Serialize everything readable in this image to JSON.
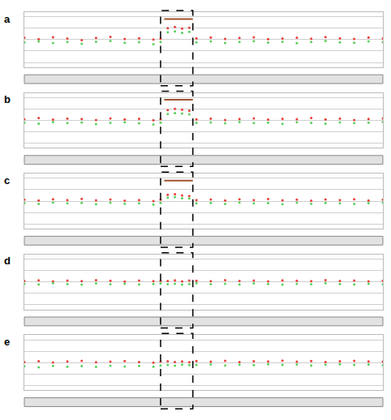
{
  "chart_data": [
    {
      "type": "scatter",
      "title": "a",
      "xlim": [
        0,
        100
      ],
      "ylim": [
        -1.2,
        1.2
      ],
      "yticks": [
        -1,
        -0.5,
        0,
        0.5,
        1
      ],
      "grid": true,
      "tick_labels": false,
      "marker": "circle",
      "x": [
        0,
        4,
        8,
        12,
        16,
        20,
        24,
        28,
        32,
        36,
        38,
        40,
        42,
        44,
        46,
        48,
        52,
        56,
        60,
        64,
        68,
        72,
        76,
        80,
        84,
        88,
        92,
        96,
        100
      ],
      "highlight_x": [
        38,
        47
      ],
      "gain_segment": {
        "x": [
          39,
          47
        ],
        "y": 0.9,
        "color": "#a0522d"
      },
      "series": [
        {
          "color": "#e8403a",
          "values": [
            0.08,
            0.02,
            0.1,
            0.05,
            -0.02,
            0.07,
            0.12,
            0.03,
            0.06,
            0.0,
            0.04,
            0.5,
            0.55,
            0.48,
            0.52,
            0.06,
            0.09,
            0.03,
            0.07,
            0.1,
            0.02,
            0.05,
            0.08,
            0.04,
            0.11,
            0.06,
            0.03,
            0.09,
            0.05
          ]
        },
        {
          "color": "#5ccf5c",
          "values": [
            -0.12,
            -0.08,
            -0.15,
            -0.1,
            -0.18,
            -0.09,
            -0.06,
            -0.14,
            -0.11,
            -0.2,
            -0.1,
            0.32,
            0.36,
            0.3,
            0.34,
            -0.12,
            -0.08,
            -0.15,
            -0.1,
            -0.07,
            -0.13,
            -0.09,
            -0.16,
            -0.1,
            -0.06,
            -0.12,
            -0.14,
            -0.08,
            -0.11
          ]
        }
      ]
    },
    {
      "type": "scatter",
      "title": "b",
      "xlim": [
        0,
        100
      ],
      "ylim": [
        -1.2,
        1.2
      ],
      "yticks": [
        -1,
        -0.5,
        0,
        0.5,
        1
      ],
      "grid": true,
      "tick_labels": false,
      "marker": "circle",
      "x": [
        0,
        4,
        8,
        12,
        16,
        20,
        24,
        28,
        32,
        36,
        38,
        40,
        42,
        44,
        46,
        48,
        52,
        56,
        60,
        64,
        68,
        72,
        76,
        80,
        84,
        88,
        92,
        96,
        100
      ],
      "highlight_x": [
        38,
        47
      ],
      "gain_segment": {
        "x": [
          39,
          47
        ],
        "y": 0.9,
        "color": "#a0522d"
      },
      "series": [
        {
          "color": "#e8403a",
          "values": [
            0.05,
            0.1,
            0.03,
            0.08,
            0.06,
            0.02,
            0.09,
            0.04,
            0.07,
            0.01,
            0.05,
            0.45,
            0.5,
            0.47,
            0.42,
            0.04,
            0.08,
            0.02,
            0.06,
            0.09,
            0.03,
            0.07,
            0.05,
            0.1,
            0.04,
            0.08,
            0.02,
            0.06,
            0.09
          ]
        },
        {
          "color": "#5ccf5c",
          "values": [
            -0.1,
            -0.14,
            -0.07,
            -0.12,
            -0.09,
            -0.16,
            -0.11,
            -0.08,
            -0.13,
            -0.18,
            -0.1,
            0.28,
            0.32,
            0.3,
            0.26,
            -0.11,
            -0.09,
            -0.13,
            -0.07,
            -0.12,
            -0.1,
            -0.15,
            -0.08,
            -0.11,
            -0.14,
            -0.09,
            -0.12,
            -0.1,
            -0.07
          ]
        }
      ]
    },
    {
      "type": "scatter",
      "title": "c",
      "xlim": [
        0,
        100
      ],
      "ylim": [
        -1.2,
        1.2
      ],
      "yticks": [
        -1,
        -0.5,
        0,
        0.5,
        1
      ],
      "grid": true,
      "tick_labels": false,
      "marker": "circle",
      "x": [
        0,
        4,
        8,
        12,
        16,
        20,
        24,
        28,
        32,
        36,
        38,
        40,
        42,
        44,
        46,
        48,
        52,
        56,
        60,
        64,
        68,
        72,
        76,
        80,
        84,
        88,
        92,
        96,
        100
      ],
      "highlight_x": [
        38,
        47
      ],
      "gain_segment": {
        "x": [
          39,
          47
        ],
        "y": 0.9,
        "color": "#a0522d"
      },
      "series": [
        {
          "color": "#e8403a",
          "values": [
            0.06,
            0.03,
            0.08,
            0.05,
            0.1,
            0.04,
            0.07,
            0.02,
            0.05,
            0.0,
            0.06,
            0.28,
            0.3,
            0.25,
            0.22,
            0.05,
            0.07,
            0.03,
            0.08,
            0.05,
            0.09,
            0.04,
            0.06,
            0.02,
            0.07,
            0.05,
            0.08,
            0.03,
            0.06
          ]
        },
        {
          "color": "#5ccf5c",
          "values": [
            -0.09,
            -0.12,
            -0.06,
            -0.1,
            -0.08,
            -0.13,
            -0.07,
            -0.11,
            -0.1,
            -0.15,
            -0.08,
            0.15,
            0.18,
            0.13,
            0.12,
            -0.1,
            -0.08,
            -0.12,
            -0.06,
            -0.1,
            -0.09,
            -0.13,
            -0.07,
            -0.11,
            -0.08,
            -0.1,
            -0.12,
            -0.09,
            -0.07
          ]
        }
      ]
    },
    {
      "type": "scatter",
      "title": "d",
      "xlim": [
        0,
        100
      ],
      "ylim": [
        -1.2,
        1.2
      ],
      "yticks": [
        -1,
        -0.5,
        0,
        0.5,
        1
      ],
      "grid": true,
      "tick_labels": false,
      "marker": "circle",
      "x": [
        0,
        4,
        8,
        12,
        16,
        20,
        24,
        28,
        32,
        36,
        38,
        40,
        42,
        44,
        46,
        48,
        52,
        56,
        60,
        64,
        68,
        72,
        76,
        80,
        84,
        88,
        92,
        96,
        100
      ],
      "highlight_x": [
        38,
        47
      ],
      "series": [
        {
          "color": "#e8403a",
          "values": [
            0.04,
            0.07,
            0.02,
            0.06,
            0.03,
            0.08,
            0.05,
            0.01,
            0.06,
            0.03,
            0.05,
            0.04,
            0.07,
            0.02,
            0.06,
            0.05,
            0.03,
            0.08,
            0.04,
            0.06,
            0.02,
            0.07,
            0.05,
            0.03,
            0.08,
            0.04,
            0.06,
            0.02,
            0.05
          ]
        },
        {
          "color": "#5ccf5c",
          "values": [
            -0.08,
            -0.11,
            -0.06,
            -0.09,
            -0.12,
            -0.07,
            -0.1,
            -0.08,
            -0.11,
            -0.09,
            -0.07,
            -0.1,
            -0.08,
            -0.12,
            -0.09,
            -0.06,
            -0.1,
            -0.08,
            -0.11,
            -0.07,
            -0.09,
            -0.12,
            -0.08,
            -0.1,
            -0.06,
            -0.09,
            -0.11,
            -0.08,
            -0.1
          ]
        }
      ]
    },
    {
      "type": "scatter",
      "title": "e",
      "xlim": [
        0,
        100
      ],
      "ylim": [
        -1.2,
        1.2
      ],
      "yticks": [
        -1,
        -0.5,
        0,
        0.5,
        1
      ],
      "grid": true,
      "tick_labels": false,
      "marker": "circle",
      "x": [
        0,
        4,
        8,
        12,
        16,
        20,
        24,
        28,
        32,
        36,
        38,
        40,
        42,
        44,
        46,
        48,
        52,
        56,
        60,
        64,
        68,
        72,
        76,
        80,
        84,
        88,
        92,
        96,
        100
      ],
      "highlight_x": [
        38,
        47
      ],
      "series": [
        {
          "color": "#e8403a",
          "values": [
            0.03,
            0.06,
            0.01,
            0.05,
            0.08,
            0.02,
            0.04,
            0.07,
            0.03,
            0.0,
            0.04,
            0.06,
            0.03,
            0.05,
            0.02,
            0.07,
            0.04,
            0.08,
            0.03,
            0.06,
            0.05,
            0.09,
            0.04,
            0.07,
            0.03,
            0.06,
            0.08,
            0.05,
            0.04
          ]
        },
        {
          "color": "#5ccf5c",
          "values": [
            -0.16,
            -0.2,
            -0.14,
            -0.18,
            -0.15,
            -0.19,
            -0.13,
            -0.17,
            -0.14,
            -0.18,
            -0.12,
            -0.1,
            -0.13,
            -0.09,
            -0.11,
            -0.1,
            -0.08,
            -0.12,
            -0.09,
            -0.11,
            -0.07,
            -0.1,
            -0.08,
            -0.12,
            -0.09,
            -0.07,
            -0.1,
            -0.08,
            -0.11
          ]
        }
      ]
    }
  ]
}
